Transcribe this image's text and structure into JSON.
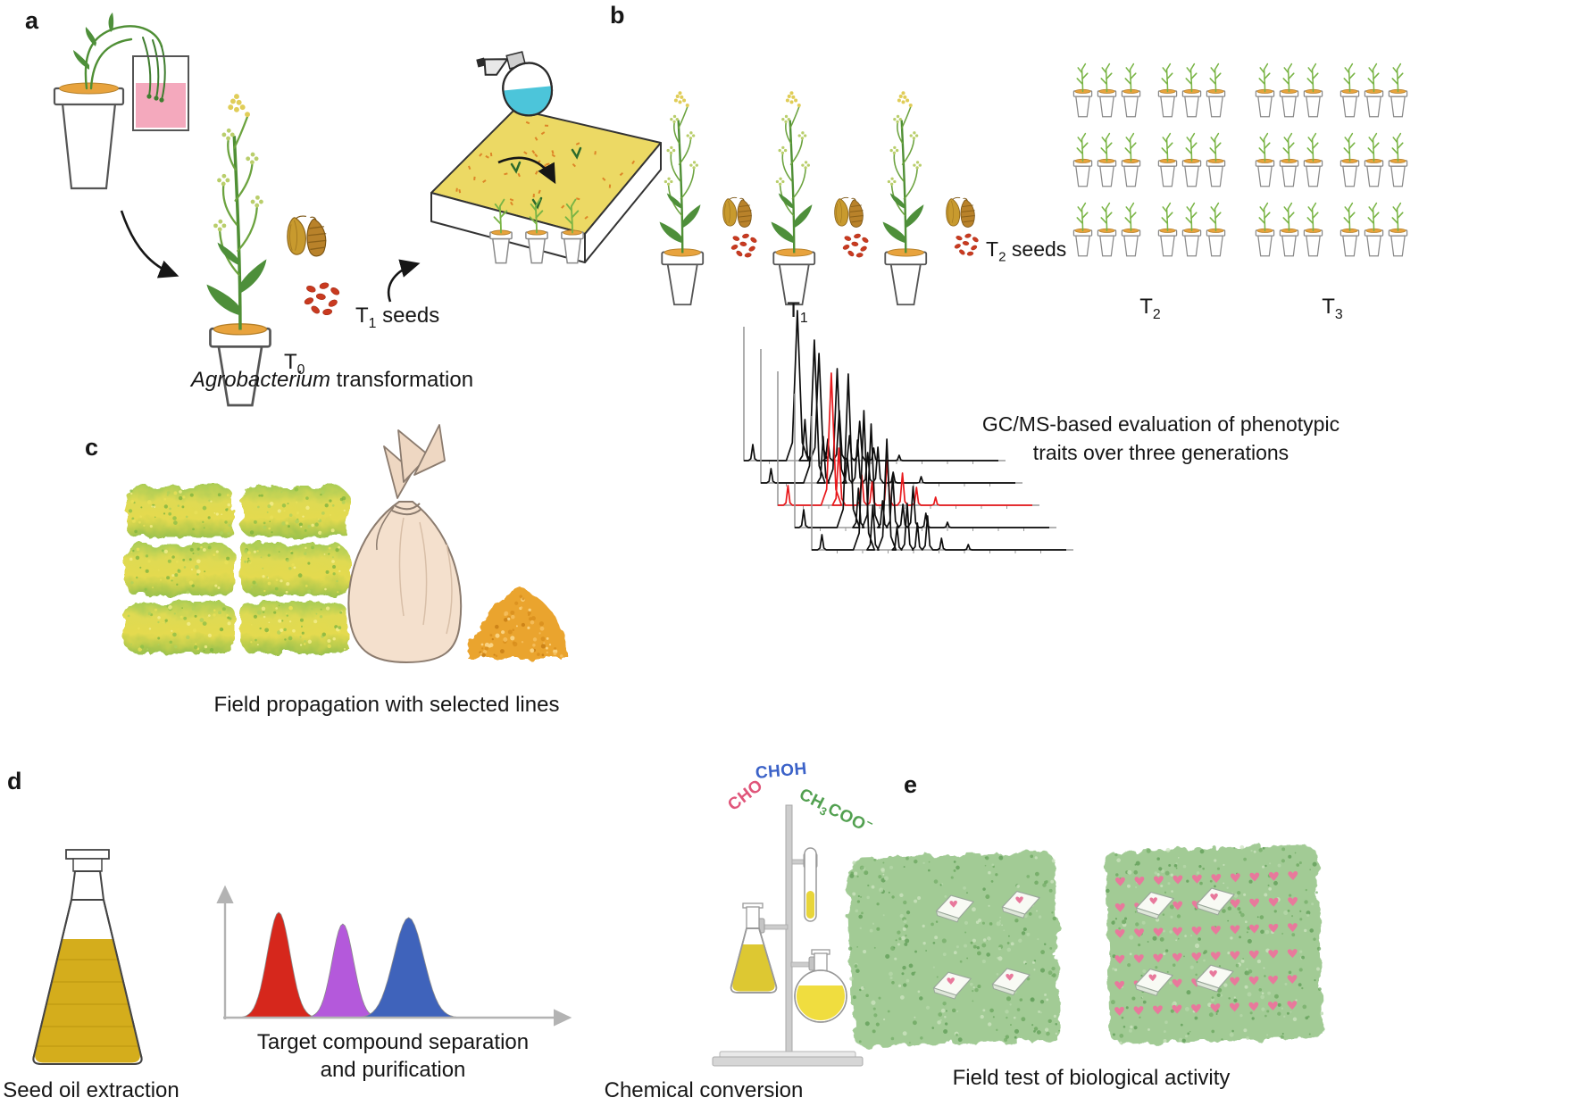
{
  "texts": {
    "panel_labels": {
      "a": "a",
      "b": "b",
      "c": "c",
      "d": "d",
      "e": "e"
    },
    "panel_a": {
      "caption_italic": "Agrobacterium",
      "caption_rest": " transformation",
      "t0": {
        "base": "T",
        "sub": "0"
      },
      "t1_seeds": {
        "base": "T",
        "sub": "1",
        "rest": " seeds"
      }
    },
    "panel_b": {
      "t1": {
        "base": "T",
        "sub": "1"
      },
      "t2_seeds": {
        "base": "T",
        "sub": "2",
        "rest": " seeds"
      },
      "t2": {
        "base": "T",
        "sub": "2"
      },
      "t3": {
        "base": "T",
        "sub": "3"
      },
      "gcms_line1": "GC/MS-based evaluation of phenotypic",
      "gcms_line2": "traits over three generations"
    },
    "panel_c": {
      "caption": "Field propagation with selected lines"
    },
    "panel_d": {
      "caption_oil": "Seed oil extraction",
      "caption_sep1": "Target compound separation",
      "caption_sep2": "and purification",
      "caption_chem": "Chemical conversion",
      "label_cho": "CHO",
      "label_choh": "CHOH",
      "label_ch3coo": {
        "pre": "CH",
        "sub": "3",
        "post": "COO",
        "sup": "−"
      }
    },
    "panel_e": {
      "caption": "Field test of biological activity"
    }
  },
  "colors": {
    "trace_black": "#0d0d0d",
    "trace_red": "#e8191c",
    "axis_gray": "#9a9a9a",
    "peak_red": "#d6271c",
    "peak_purple": "#b459db",
    "peak_blue": "#3f63bb",
    "heart_pink": "#e8799c",
    "oil_yellow": "#d4ad1c",
    "dip_pink": "#f4a9bd",
    "spray_cyan": "#4cc5da",
    "cho_pink": "#e0557a",
    "choh_blue": "#3b62c8",
    "ch3coo_green": "#52a050",
    "field_green": "#a2cb95",
    "patch_yellow": "#e4da4f",
    "seed_red": "#c93a20",
    "soil_orange": "#e8a33d"
  },
  "counts": {
    "t1_plants": 3,
    "t2_grid": {
      "rows": 3,
      "cols": 6
    },
    "t3_grid": {
      "rows": 3,
      "cols": 6
    },
    "field_patches": 6,
    "traps_per_field": 4,
    "heart_rows": 6,
    "hearts_per_row": 10
  },
  "chart_data": [
    {
      "type": "line",
      "title": "GC/MS chromatograms: five stacked traces over three generations",
      "xlabel": "",
      "ylabel": "",
      "layout": "five L-shaped gray axes stacked with diagonal offset; traces drawn over one another; third trace highlighted in red",
      "series": [
        {
          "name": "trace 1",
          "color": "#0d0d0d",
          "peaks": [
            [
              0.035,
              18
            ],
            [
              0.21,
              168
            ],
            [
              0.24,
              46
            ],
            [
              0.295,
              120
            ],
            [
              0.33,
              24
            ],
            [
              0.375,
              56
            ],
            [
              0.415,
              28
            ],
            [
              0.455,
              44
            ],
            [
              0.51,
              14
            ],
            [
              0.61,
              6
            ]
          ]
        },
        {
          "name": "trace 2",
          "color": "#0d0d0d",
          "peaks": [
            [
              0.04,
              16
            ],
            [
              0.21,
              160
            ],
            [
              0.245,
              52
            ],
            [
              0.3,
              128
            ],
            [
              0.34,
              28
            ],
            [
              0.38,
              48
            ],
            [
              0.42,
              34
            ],
            [
              0.46,
              40
            ],
            [
              0.52,
              12
            ],
            [
              0.63,
              7
            ]
          ]
        },
        {
          "name": "trace 3 (highlighted)",
          "color": "#e8191c",
          "peaks": [
            [
              0.04,
              22
            ],
            [
              0.21,
              148
            ],
            [
              0.24,
              64
            ],
            [
              0.33,
              34
            ],
            [
              0.37,
              26
            ],
            [
              0.43,
              50
            ],
            [
              0.49,
              36
            ],
            [
              0.545,
              20
            ],
            [
              0.62,
              9
            ]
          ]
        },
        {
          "name": "trace 4",
          "color": "#0d0d0d",
          "peaks": [
            [
              0.035,
              20
            ],
            [
              0.21,
              172
            ],
            [
              0.25,
              44
            ],
            [
              0.3,
              116
            ],
            [
              0.345,
              30
            ],
            [
              0.385,
              58
            ],
            [
              0.425,
              26
            ],
            [
              0.465,
              46
            ],
            [
              0.515,
              16
            ],
            [
              0.6,
              6
            ]
          ]
        },
        {
          "name": "trace 5",
          "color": "#0d0d0d",
          "peaks": [
            [
              0.04,
              17
            ],
            [
              0.205,
              156
            ],
            [
              0.24,
              50
            ],
            [
              0.295,
              124
            ],
            [
              0.335,
              26
            ],
            [
              0.375,
              52
            ],
            [
              0.415,
              30
            ],
            [
              0.455,
              38
            ],
            [
              0.51,
              13
            ],
            [
              0.615,
              6
            ]
          ]
        }
      ]
    },
    {
      "type": "area",
      "title": "Target compound separation and purification (three resolved peaks)",
      "xlabel": "",
      "ylabel": "",
      "layout": "unlabeled gray arrow axes; three gaussian peaks",
      "series": [
        {
          "name": "peak 1",
          "color": "#d6271c",
          "center": 0.155,
          "sigma": 0.033,
          "height": 1.0
        },
        {
          "name": "peak 2",
          "color": "#b459db",
          "center": 0.34,
          "sigma": 0.031,
          "height": 0.89
        },
        {
          "name": "peak 3",
          "color": "#3f63bb",
          "center": 0.53,
          "sigma": 0.043,
          "height": 0.95
        }
      ]
    }
  ]
}
